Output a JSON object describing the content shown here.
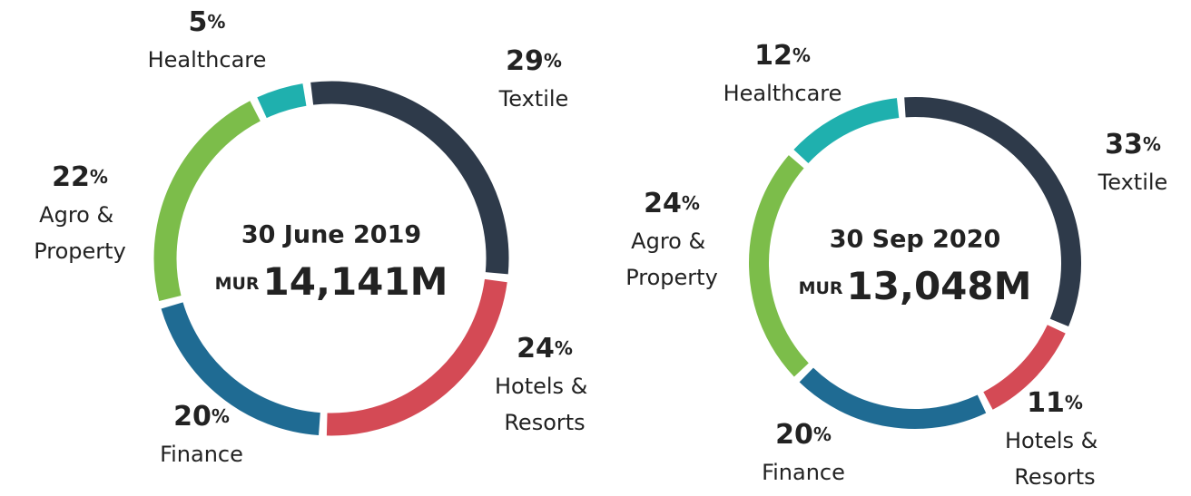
{
  "chart_data": [
    {
      "type": "donut",
      "title": "30 June 2019",
      "currency": "MUR",
      "total": "14,141M",
      "categories": [
        "Textile",
        "Hotels & Resorts",
        "Finance",
        "Agro & Property",
        "Healthcare"
      ],
      "values": [
        29,
        24,
        20,
        22,
        5
      ],
      "value_labels": [
        "29%",
        "24%",
        "20%",
        "22%",
        "5%"
      ],
      "colors": [
        "#2e3a4a",
        "#d44a55",
        "#1f6b93",
        "#7cbd4a",
        "#1fb0ae"
      ]
    },
    {
      "type": "donut",
      "title": "30 Sep 2020",
      "currency": "MUR",
      "total": "13,048M",
      "categories": [
        "Textile",
        "Hotels & Resorts",
        "Finance",
        "Agro & Property",
        "Healthcare"
      ],
      "values": [
        33,
        11,
        20,
        24,
        12
      ],
      "value_labels": [
        "33%",
        "11%",
        "20%",
        "24%",
        "12%"
      ],
      "colors": [
        "#2e3a4a",
        "#d44a55",
        "#1f6b93",
        "#7cbd4a",
        "#1fb0ae"
      ]
    }
  ]
}
